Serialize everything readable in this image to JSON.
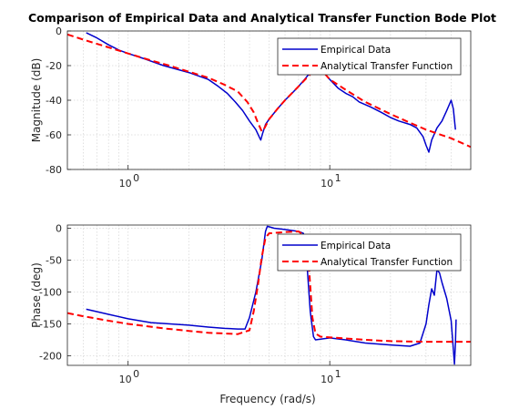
{
  "chart_data": {
    "type": "line",
    "title": "Comparison of Empirical Data and Analytical Transfer Function Bode Plot",
    "xlabel": "Frequency (rad/s)",
    "x_scale": "log",
    "xlim": [
      0.5,
      50
    ],
    "grid": true,
    "legend_position": "top-right",
    "subplots": [
      {
        "ylabel": "Magnitude (dB)",
        "ylim": [
          -80,
          0
        ],
        "yticks": [
          "0",
          "-20",
          "-40",
          "-60",
          "-80"
        ],
        "xticks": [
          {
            "label": "10",
            "exp": "0"
          },
          {
            "label": "10",
            "exp": "1"
          }
        ],
        "series": [
          {
            "name": "Empirical Data",
            "color": "#0000cc",
            "style": "solid",
            "points": [
              [
                0.62,
                -1
              ],
              [
                0.7,
                -4
              ],
              [
                0.8,
                -8
              ],
              [
                0.9,
                -11
              ],
              [
                1.0,
                -13
              ],
              [
                1.2,
                -16
              ],
              [
                1.5,
                -20
              ],
              [
                2.0,
                -24
              ],
              [
                2.5,
                -28
              ],
              [
                2.8,
                -32
              ],
              [
                3.1,
                -36
              ],
              [
                3.4,
                -41
              ],
              [
                3.7,
                -46
              ],
              [
                4.0,
                -52
              ],
              [
                4.3,
                -57
              ],
              [
                4.5,
                -62
              ],
              [
                4.55,
                -63
              ],
              [
                4.65,
                -59
              ],
              [
                4.8,
                -54
              ],
              [
                5.0,
                -51
              ],
              [
                5.5,
                -45
              ],
              [
                6.0,
                -40
              ],
              [
                6.5,
                -36
              ],
              [
                7.0,
                -32
              ],
              [
                7.5,
                -28
              ],
              [
                8.0,
                -24
              ],
              [
                8.4,
                -21
              ],
              [
                8.7,
                -21
              ],
              [
                9.0,
                -22
              ],
              [
                9.5,
                -25
              ],
              [
                10.0,
                -28
              ],
              [
                11.0,
                -33
              ],
              [
                12.0,
                -36
              ],
              [
                13.0,
                -38
              ],
              [
                14.0,
                -41
              ],
              [
                16.0,
                -44
              ],
              [
                18.0,
                -47
              ],
              [
                20.0,
                -50
              ],
              [
                22.0,
                -52
              ],
              [
                25.0,
                -54
              ],
              [
                27.0,
                -56
              ],
              [
                29.0,
                -61
              ],
              [
                30.0,
                -66
              ],
              [
                31.0,
                -70
              ],
              [
                32.0,
                -63
              ],
              [
                34.0,
                -56
              ],
              [
                36.0,
                -52
              ],
              [
                38.0,
                -46
              ],
              [
                40.0,
                -40
              ],
              [
                41.0,
                -45
              ],
              [
                42.0,
                -57
              ]
            ]
          },
          {
            "name": "Analytical Transfer Function",
            "color": "#ff0000",
            "style": "dashed",
            "points": [
              [
                0.5,
                -2
              ],
              [
                0.6,
                -5
              ],
              [
                0.8,
                -9.5
              ],
              [
                1.0,
                -13
              ],
              [
                1.3,
                -17
              ],
              [
                1.6,
                -20
              ],
              [
                2.0,
                -23.5
              ],
              [
                2.5,
                -27
              ],
              [
                3.0,
                -31
              ],
              [
                3.5,
                -35
              ],
              [
                3.9,
                -41
              ],
              [
                4.2,
                -47
              ],
              [
                4.4,
                -53
              ],
              [
                4.6,
                -58
              ],
              [
                4.75,
                -56
              ],
              [
                5.0,
                -51
              ],
              [
                5.5,
                -45
              ],
              [
                6.0,
                -40
              ],
              [
                7.0,
                -32
              ],
              [
                8.0,
                -25
              ],
              [
                8.5,
                -22
              ],
              [
                8.8,
                -22
              ],
              [
                9.5,
                -25
              ],
              [
                10.0,
                -28
              ],
              [
                12.0,
                -34
              ],
              [
                15.0,
                -41
              ],
              [
                20.0,
                -48
              ],
              [
                25.0,
                -53
              ],
              [
                30.0,
                -57
              ],
              [
                40.0,
                -62
              ],
              [
                50.0,
                -67
              ]
            ]
          }
        ]
      },
      {
        "ylabel": "Phase (deg)",
        "ylim": [
          -215,
          5
        ],
        "yticks": [
          "0",
          "-50",
          "-100",
          "-150",
          "-200"
        ],
        "xticks": [
          {
            "label": "10",
            "exp": "0"
          },
          {
            "label": "10",
            "exp": "1"
          }
        ],
        "series": [
          {
            "name": "Empirical Data",
            "color": "#0000cc",
            "style": "solid",
            "points": [
              [
                0.62,
                -127
              ],
              [
                0.8,
                -135
              ],
              [
                1.0,
                -142
              ],
              [
                1.3,
                -148
              ],
              [
                2.0,
                -152
              ],
              [
                2.5,
                -155
              ],
              [
                3.0,
                -157
              ],
              [
                3.5,
                -158
              ],
              [
                3.8,
                -158
              ],
              [
                4.0,
                -140
              ],
              [
                4.3,
                -100
              ],
              [
                4.6,
                -50
              ],
              [
                4.8,
                -5
              ],
              [
                4.9,
                3
              ],
              [
                5.3,
                0
              ],
              [
                6.0,
                -2
              ],
              [
                7.0,
                -5
              ],
              [
                7.4,
                -8
              ],
              [
                7.6,
                -30
              ],
              [
                7.8,
                -80
              ],
              [
                8.0,
                -130
              ],
              [
                8.3,
                -170
              ],
              [
                8.5,
                -175
              ],
              [
                10.0,
                -172
              ],
              [
                12.0,
                -175
              ],
              [
                15.0,
                -180
              ],
              [
                20.0,
                -183
              ],
              [
                25.0,
                -185
              ],
              [
                28.0,
                -180
              ],
              [
                30.0,
                -150
              ],
              [
                31.0,
                -120
              ],
              [
                32.0,
                -95
              ],
              [
                33.0,
                -105
              ],
              [
                34.0,
                -65
              ],
              [
                35.0,
                -70
              ],
              [
                36.0,
                -85
              ],
              [
                38.0,
                -110
              ],
              [
                40.0,
                -145
              ],
              [
                41.0,
                -190
              ],
              [
                41.5,
                -213
              ],
              [
                42.0,
                -180
              ],
              [
                42.3,
                -143
              ]
            ]
          },
          {
            "name": "Analytical Transfer Function",
            "color": "#ff0000",
            "style": "dashed",
            "points": [
              [
                0.5,
                -133
              ],
              [
                0.6,
                -138
              ],
              [
                0.8,
                -145
              ],
              [
                1.0,
                -150
              ],
              [
                1.5,
                -157
              ],
              [
                2.0,
                -161
              ],
              [
                2.5,
                -164
              ],
              [
                3.0,
                -165
              ],
              [
                3.5,
                -166
              ],
              [
                4.0,
                -160
              ],
              [
                4.2,
                -130
              ],
              [
                4.4,
                -90
              ],
              [
                4.6,
                -45
              ],
              [
                4.8,
                -15
              ],
              [
                5.0,
                -8
              ],
              [
                6.0,
                -6
              ],
              [
                7.0,
                -5
              ],
              [
                7.5,
                -12
              ],
              [
                7.8,
                -40
              ],
              [
                8.0,
                -90
              ],
              [
                8.2,
                -140
              ],
              [
                8.5,
                -165
              ],
              [
                9.0,
                -170
              ],
              [
                11.0,
                -172
              ],
              [
                15.0,
                -175
              ],
              [
                20.0,
                -177
              ],
              [
                30.0,
                -178
              ],
              [
                50.0,
                -178
              ]
            ]
          }
        ]
      }
    ]
  }
}
